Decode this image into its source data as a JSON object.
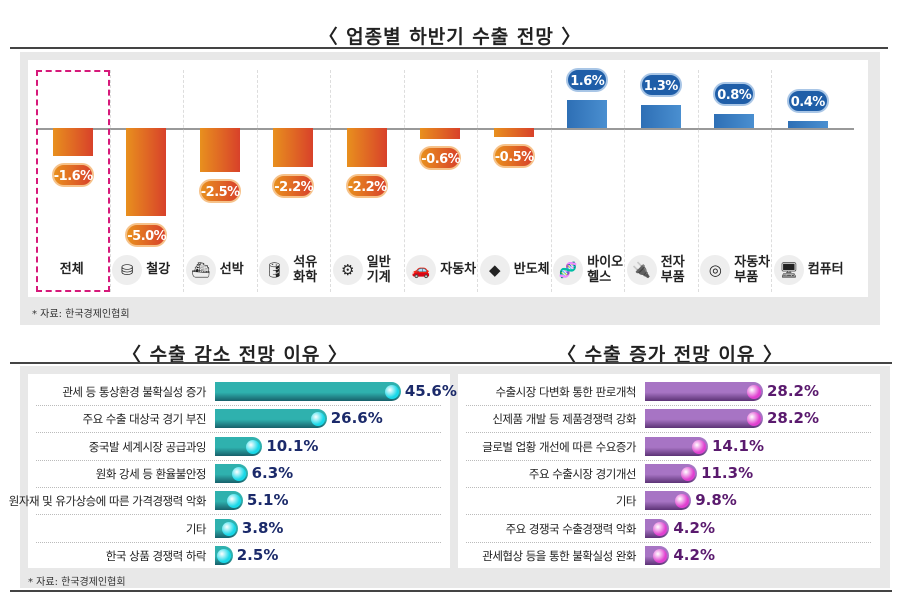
{
  "top": {
    "title": "〈 업종별 하반기 수출 전망 〉",
    "source": "* 자료: 한국경제인협회"
  },
  "bottom_left": {
    "title": "〈 수출 감소 전망 이유 〉"
  },
  "bottom_right": {
    "title": "〈 수출 증가 전망 이유 〉"
  },
  "bottom_source": "* 자료: 한국경제인협회",
  "colors": {
    "negative": "#e0552a",
    "positive": "#2f77be",
    "decrease_bar": "#2aa7a7",
    "increase_bar": "#9a5ab0",
    "highlight": "#d6197a"
  },
  "chart_data": [
    {
      "type": "bar",
      "title": "〈 업종별 하반기 수출 전망 〉",
      "categories": [
        "전체",
        "철강",
        "선박",
        "석유\n화학",
        "일반\n기계",
        "자동차",
        "반도체",
        "바이오\n헬스",
        "전자\n부품",
        "자동차\n부품",
        "컴퓨터"
      ],
      "icons": [
        "none",
        "steel-coins-icon",
        "ship-icon",
        "oil-barrel-icon",
        "gears-icon",
        "car-icon",
        "chip-icon",
        "dna-icon",
        "plug-icon",
        "tire-icon",
        "monitor-icon"
      ],
      "values": [
        -1.6,
        -5.0,
        -2.5,
        -2.2,
        -2.2,
        -0.6,
        -0.5,
        1.6,
        1.3,
        0.8,
        0.4
      ],
      "labels": [
        "-1.6%",
        "-5.0%",
        "-2.5%",
        "-2.2%",
        "-2.2%",
        "-0.6%",
        "-0.5%",
        "1.6%",
        "1.3%",
        "0.8%",
        "0.4%"
      ],
      "highlighted": "전체",
      "unit": "%"
    },
    {
      "type": "bar",
      "orientation": "horizontal",
      "title": "〈 수출 감소 전망 이유 〉",
      "categories": [
        "관세 등 통상환경 불확실성 증가",
        "주요 수출 대상국 경기 부진",
        "중국발 세계시장 공급과잉",
        "원화 강세 등 환율불안정",
        "원자재 및 유가상승에 따른 가격경쟁력 악화",
        "기타",
        "한국 상품 경쟁력 하락"
      ],
      "values": [
        45.6,
        26.6,
        10.1,
        6.3,
        5.1,
        3.8,
        2.5
      ],
      "labels": [
        "45.6%",
        "26.6%",
        "10.1%",
        "6.3%",
        "5.1%",
        "3.8%",
        "2.5%"
      ]
    },
    {
      "type": "bar",
      "orientation": "horizontal",
      "title": "〈 수출 증가 전망 이유 〉",
      "categories": [
        "수출시장 다변화 통한 판로개척",
        "신제품 개발 등 제품경쟁력 강화",
        "글로벌 업황 개선에 따른 수요증가",
        "주요 수출시장 경기개선",
        "기타",
        "주요 경쟁국 수출경쟁력 악화",
        "관세협상 등을 통한 불확실성 완화"
      ],
      "values": [
        28.2,
        28.2,
        14.1,
        11.3,
        9.8,
        4.2,
        4.2
      ],
      "labels": [
        "28.2%",
        "28.2%",
        "14.1%",
        "11.3%",
        "9.8%",
        "4.2%",
        "4.2%"
      ]
    }
  ]
}
